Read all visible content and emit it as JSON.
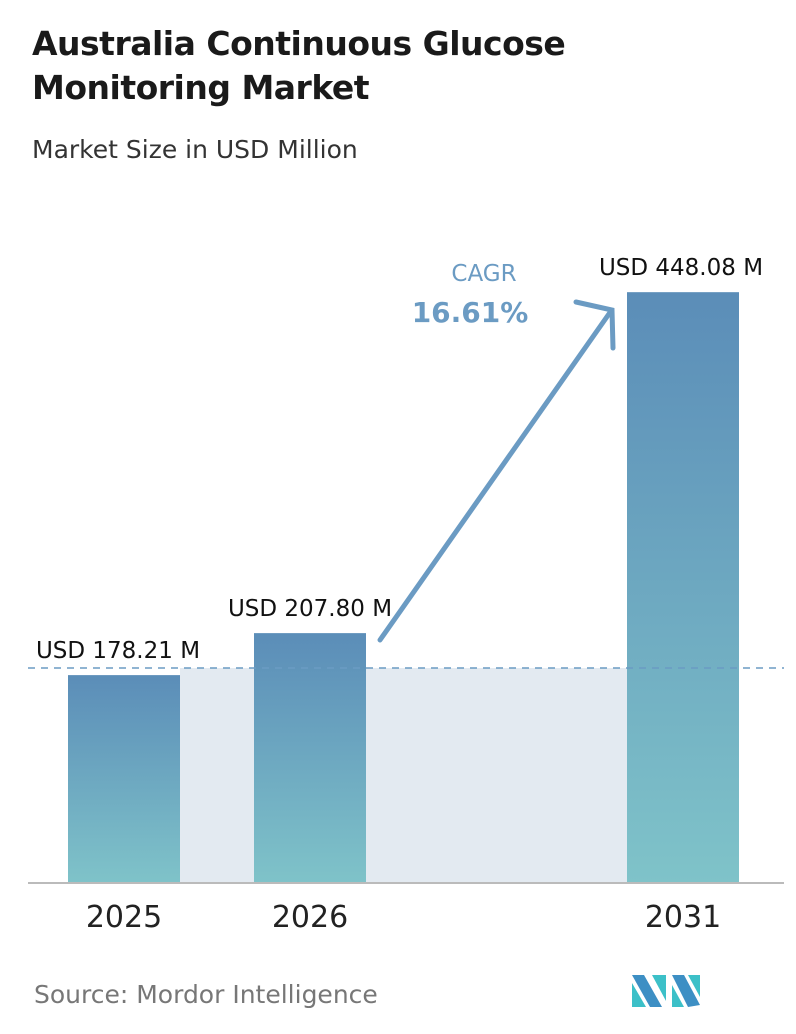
{
  "title": "Australia Continuous Glucose Monitoring Market",
  "subtitle": "Market Size in USD Million",
  "chart_data": {
    "type": "bar",
    "categories": [
      "2025",
      "2026",
      "2031"
    ],
    "values": [
      178.21,
      207.8,
      448.08
    ],
    "data_labels": [
      "USD 178.21 M",
      "USD 207.80 M",
      "USD 448.08 M"
    ],
    "title": "Australia Continuous Glucose Monitoring Market",
    "subtitle": "Market Size in USD Million",
    "xlabel": "",
    "ylabel": "",
    "grid": false,
    "annotation": {
      "label": "CAGR",
      "value": "16.61%"
    },
    "colors": {
      "bar_top": "#5b8db8",
      "bar_bottom": "#7fc3c9",
      "shade": "#e3eaf1",
      "annotation": "#6b9bc3"
    }
  },
  "source": "Source:  Mordor Intelligence",
  "logo_text": "Mordor Intelligence"
}
